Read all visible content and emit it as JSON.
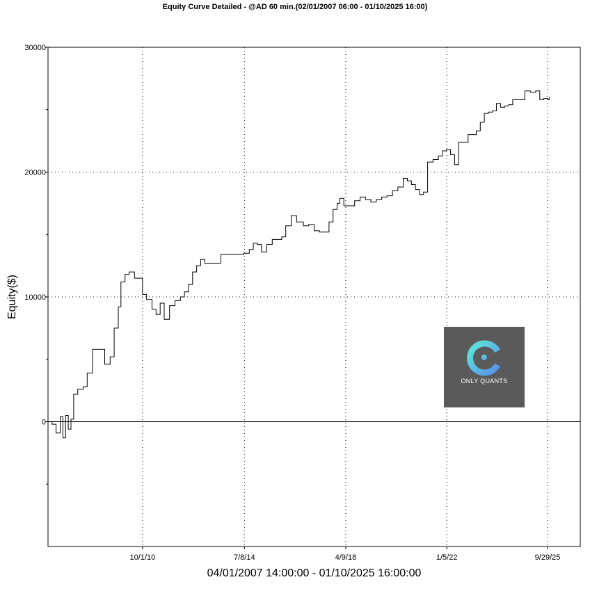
{
  "chart_data": {
    "type": "line",
    "title": "Equity Curve Detailed - @AD 60 min.(02/01/2007 06:00 - 01/10/2025 16:00)",
    "xlabel": "04/01/2007 14:00:00 - 01/10/2025 16:00:00",
    "ylabel": "Equity($)",
    "xlim": [
      2007.25,
      2026.95
    ],
    "ylim": [
      -10000,
      30000
    ],
    "y_ticks": [
      0,
      10000,
      20000,
      30000
    ],
    "y_tick_labels": [
      "0",
      "10000",
      "20000",
      "30000"
    ],
    "x_ticks": [
      2010.75,
      2014.52,
      2018.27,
      2022.01,
      2025.74
    ],
    "x_tick_labels": [
      "10/1/10",
      "7/8/14",
      "4/9/18",
      "1/5/22",
      "9/29/25"
    ],
    "grid": true,
    "series": [
      {
        "values": [
          [
            2007.25,
            0
          ],
          [
            2007.4,
            -200
          ],
          [
            2007.55,
            -900
          ],
          [
            2007.7,
            400
          ],
          [
            2007.8,
            -1300
          ],
          [
            2007.9,
            500
          ],
          [
            2008.0,
            -600
          ],
          [
            2008.1,
            200
          ],
          [
            2008.2,
            2200
          ],
          [
            2008.35,
            2600
          ],
          [
            2008.55,
            2800
          ],
          [
            2008.7,
            3900
          ],
          [
            2008.9,
            5800
          ],
          [
            2009.2,
            5800
          ],
          [
            2009.35,
            4600
          ],
          [
            2009.55,
            5200
          ],
          [
            2009.7,
            7500
          ],
          [
            2009.85,
            9200
          ],
          [
            2009.95,
            11200
          ],
          [
            2010.1,
            11800
          ],
          [
            2010.25,
            12000
          ],
          [
            2010.45,
            11500
          ],
          [
            2010.6,
            11500
          ],
          [
            2010.75,
            10200
          ],
          [
            2010.9,
            9800
          ],
          [
            2011.1,
            9000
          ],
          [
            2011.25,
            8600
          ],
          [
            2011.4,
            9500
          ],
          [
            2011.55,
            8200
          ],
          [
            2011.75,
            9300
          ],
          [
            2011.95,
            9700
          ],
          [
            2012.15,
            10000
          ],
          [
            2012.3,
            10400
          ],
          [
            2012.45,
            11000
          ],
          [
            2012.6,
            12000
          ],
          [
            2012.75,
            12500
          ],
          [
            2012.9,
            13000
          ],
          [
            2013.05,
            12700
          ],
          [
            2013.3,
            12700
          ],
          [
            2013.5,
            12700
          ],
          [
            2013.65,
            13400
          ],
          [
            2014.0,
            13400
          ],
          [
            2014.3,
            13400
          ],
          [
            2014.5,
            13500
          ],
          [
            2014.7,
            13800
          ],
          [
            2014.85,
            14300
          ],
          [
            2015.0,
            14200
          ],
          [
            2015.15,
            13600
          ],
          [
            2015.35,
            14200
          ],
          [
            2015.55,
            14600
          ],
          [
            2015.75,
            14600
          ],
          [
            2015.9,
            14800
          ],
          [
            2016.05,
            15700
          ],
          [
            2016.25,
            16500
          ],
          [
            2016.45,
            16000
          ],
          [
            2016.7,
            15700
          ],
          [
            2016.9,
            15800
          ],
          [
            2017.1,
            15300
          ],
          [
            2017.3,
            15200
          ],
          [
            2017.5,
            15200
          ],
          [
            2017.65,
            16000
          ],
          [
            2017.8,
            17000
          ],
          [
            2017.95,
            17500
          ],
          [
            2018.05,
            17900
          ],
          [
            2018.2,
            17300
          ],
          [
            2018.4,
            17300
          ],
          [
            2018.6,
            17700
          ],
          [
            2018.8,
            18000
          ],
          [
            2019.0,
            17800
          ],
          [
            2019.2,
            17600
          ],
          [
            2019.4,
            17800
          ],
          [
            2019.6,
            18000
          ],
          [
            2019.8,
            18100
          ],
          [
            2020.0,
            18500
          ],
          [
            2020.2,
            18800
          ],
          [
            2020.4,
            19500
          ],
          [
            2020.55,
            19300
          ],
          [
            2020.7,
            19000
          ],
          [
            2020.85,
            18600
          ],
          [
            2021.0,
            18200
          ],
          [
            2021.15,
            18400
          ],
          [
            2021.3,
            20800
          ],
          [
            2021.5,
            21000
          ],
          [
            2021.7,
            21300
          ],
          [
            2021.85,
            21700
          ],
          [
            2022.0,
            21800
          ],
          [
            2022.15,
            21400
          ],
          [
            2022.3,
            20600
          ],
          [
            2022.45,
            22400
          ],
          [
            2022.6,
            22400
          ],
          [
            2022.8,
            23000
          ],
          [
            2022.95,
            23000
          ],
          [
            2023.1,
            23300
          ],
          [
            2023.25,
            24000
          ],
          [
            2023.4,
            24700
          ],
          [
            2023.55,
            24800
          ],
          [
            2023.7,
            24900
          ],
          [
            2023.85,
            25500
          ],
          [
            2024.0,
            25200
          ],
          [
            2024.15,
            25300
          ],
          [
            2024.3,
            25400
          ],
          [
            2024.45,
            25800
          ],
          [
            2024.6,
            25800
          ],
          [
            2024.75,
            25800
          ],
          [
            2024.9,
            26500
          ],
          [
            2025.1,
            26400
          ],
          [
            2025.3,
            26500
          ],
          [
            2025.45,
            25800
          ],
          [
            2025.6,
            25900
          ],
          [
            2025.75,
            25800
          ],
          [
            2025.8,
            26000
          ]
        ]
      }
    ]
  },
  "logo": {
    "text": "ONLY QUANTS",
    "bg": "#5a5a5a",
    "accent_from": "#5ee8d6",
    "accent_to": "#5a8ff0"
  }
}
